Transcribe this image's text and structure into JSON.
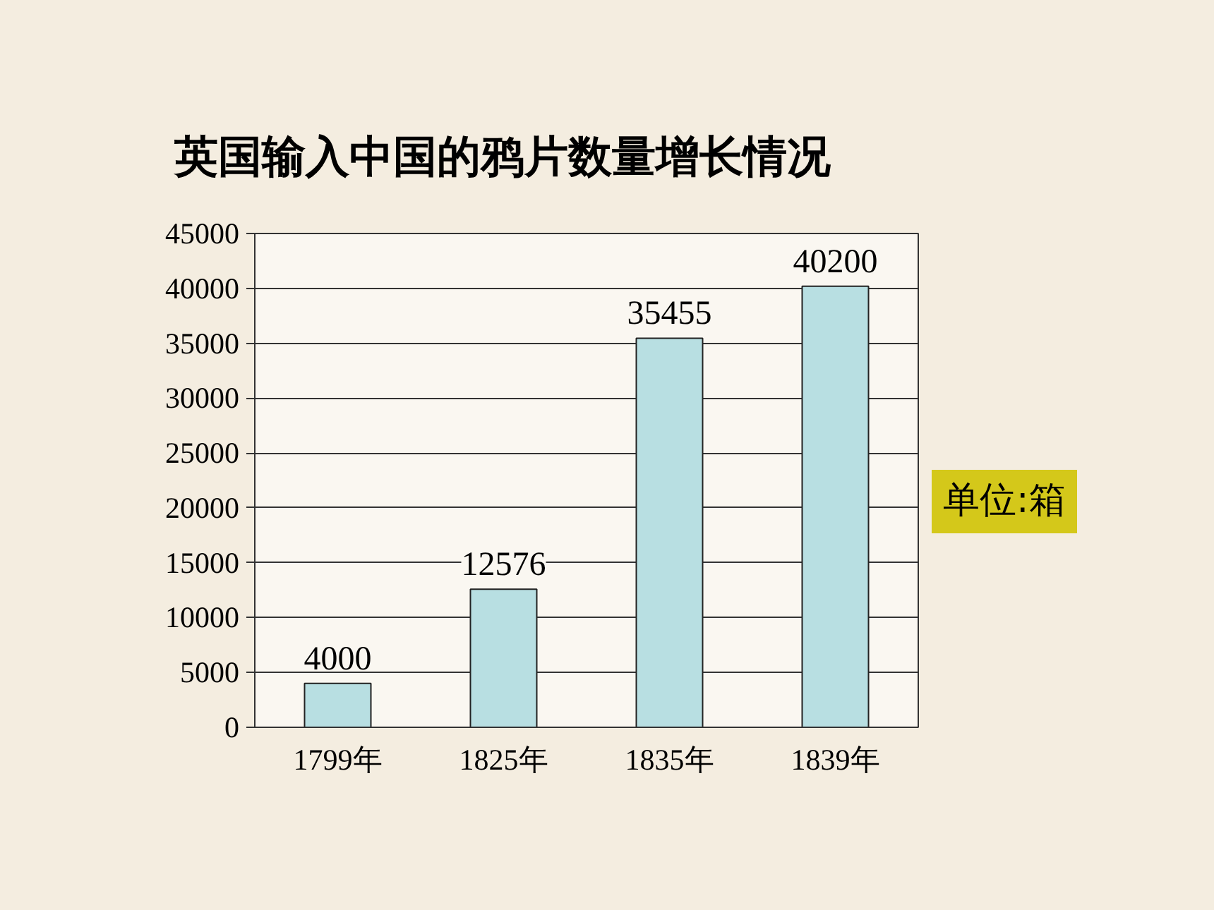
{
  "chart_data": {
    "type": "bar",
    "title": "英国输入中国的鸦片数量增长情况",
    "categories": [
      "1799年",
      "1825年",
      "1835年",
      "1839年"
    ],
    "values": [
      4000,
      12576,
      35455,
      40200
    ],
    "color": "#b8dfe2",
    "ylim": [
      0,
      45000
    ],
    "yticks": [
      0,
      5000,
      10000,
      15000,
      20000,
      25000,
      30000,
      35000,
      40000,
      45000
    ],
    "grid": "y",
    "data_labels": true,
    "annotations": [
      "单位:箱"
    ]
  }
}
